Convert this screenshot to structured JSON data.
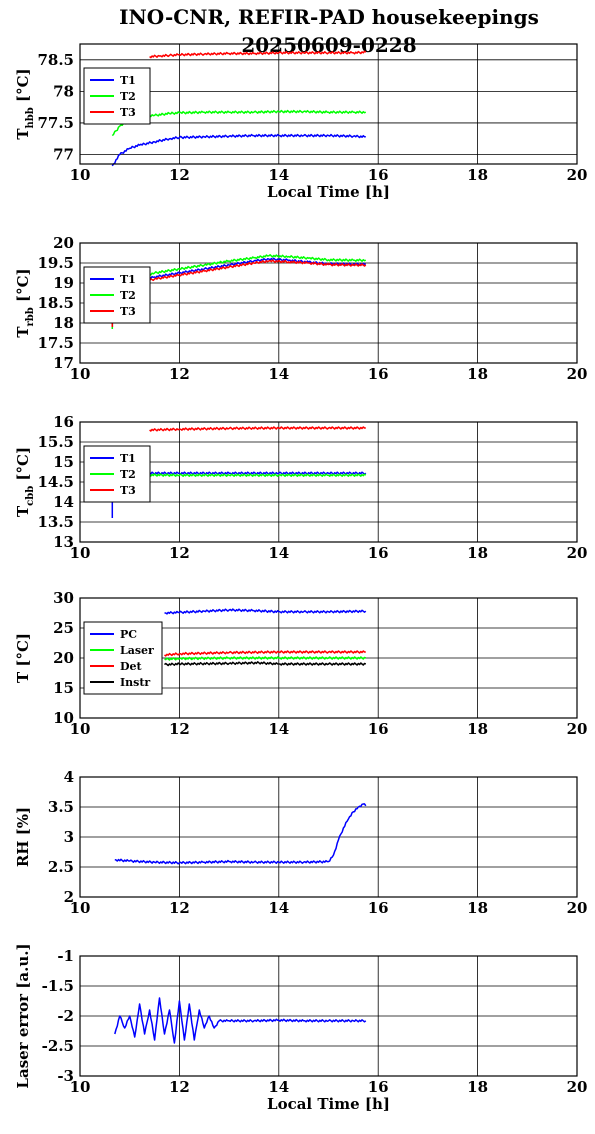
{
  "figure": {
    "title_line1": "INO-CNR, REFIR-PAD housekeepings",
    "title_line2": "20250609-0228"
  },
  "chart_data": [
    {
      "type": "line",
      "ylabel_main": "T",
      "ylabel_sub": "hbb",
      "ylabel_unit": " [°C]",
      "xlabel": "Local Time [h]",
      "xlim": [
        10,
        20
      ],
      "xticks": [
        "10",
        "12",
        "14",
        "16",
        "18",
        "20"
      ],
      "ylim": [
        76.85,
        78.75
      ],
      "yticks": [
        "77",
        "77.5",
        "78",
        "78.5"
      ],
      "ytick_values": [
        77,
        77.5,
        78,
        78.5
      ],
      "series": [
        {
          "name": "T1",
          "color": "#0000ff",
          "x": [
            10.65,
            10.8,
            11.0,
            11.2,
            11.5,
            11.8,
            12.0,
            12.5,
            13.0,
            13.5,
            14.0,
            14.5,
            15.0,
            15.5,
            15.75
          ],
          "y": [
            76.82,
            77.0,
            77.1,
            77.15,
            77.2,
            77.25,
            77.27,
            77.28,
            77.29,
            77.3,
            77.3,
            77.3,
            77.3,
            77.29,
            77.28
          ]
        },
        {
          "name": "T2",
          "color": "#00ff00",
          "x": [
            10.65,
            10.8,
            11.0,
            11.2,
            11.5,
            11.8,
            12.0,
            12.5,
            13.0,
            13.5,
            14.0,
            14.5,
            15.0,
            15.5,
            15.75
          ],
          "y": [
            77.3,
            77.45,
            77.53,
            77.58,
            77.62,
            77.65,
            77.66,
            77.67,
            77.67,
            77.67,
            77.68,
            77.68,
            77.67,
            77.67,
            77.67
          ]
        },
        {
          "name": "T3",
          "color": "#ff0000",
          "x": [
            11.4,
            11.6,
            11.8,
            12.0,
            12.5,
            13.0,
            13.5,
            14.0,
            14.5,
            15.0,
            15.5,
            15.75
          ],
          "y": [
            78.55,
            78.56,
            78.57,
            78.58,
            78.59,
            78.6,
            78.6,
            78.61,
            78.61,
            78.61,
            78.61,
            78.62
          ]
        }
      ],
      "legend": "top-left",
      "grid": true
    },
    {
      "type": "line",
      "ylabel_main": "T",
      "ylabel_sub": "rbb",
      "ylabel_unit": " [°C]",
      "xlabel": "",
      "xlim": [
        10,
        20
      ],
      "xticks": [
        "10",
        "12",
        "14",
        "16",
        "18",
        "20"
      ],
      "ylim": [
        17,
        20
      ],
      "yticks": [
        "17",
        "17.5",
        "18",
        "18.5",
        "19",
        "19.5",
        "20"
      ],
      "ytick_values": [
        17,
        17.5,
        18,
        18.5,
        19,
        19.5,
        20
      ],
      "series": [
        {
          "name": "T1",
          "color": "#0000ff",
          "x": [
            10.65,
            10.65,
            10.7,
            11.0,
            11.5,
            12.0,
            12.5,
            13.0,
            13.5,
            13.8,
            14.2,
            14.6,
            15.0,
            15.5,
            15.75
          ],
          "y": [
            17.9,
            18.6,
            18.9,
            19.0,
            19.15,
            19.25,
            19.35,
            19.45,
            19.55,
            19.6,
            19.57,
            19.52,
            19.48,
            19.47,
            19.47
          ]
        },
        {
          "name": "T2",
          "color": "#00ff00",
          "x": [
            10.65,
            10.65,
            10.7,
            11.0,
            11.5,
            12.0,
            12.5,
            13.0,
            13.5,
            13.8,
            14.2,
            14.6,
            15.0,
            15.5,
            15.75
          ],
          "y": [
            17.85,
            18.6,
            18.95,
            19.1,
            19.25,
            19.35,
            19.45,
            19.55,
            19.63,
            19.68,
            19.66,
            19.62,
            19.58,
            19.57,
            19.57
          ]
        },
        {
          "name": "T3",
          "color": "#ff0000",
          "x": [
            10.65,
            10.65,
            10.7,
            11.0,
            11.5,
            12.0,
            12.5,
            13.0,
            13.5,
            13.8,
            14.2,
            14.6,
            15.0,
            15.5,
            15.75
          ],
          "y": [
            17.9,
            18.6,
            18.85,
            18.95,
            19.1,
            19.2,
            19.3,
            19.4,
            19.5,
            19.55,
            19.53,
            19.5,
            19.46,
            19.45,
            19.45
          ]
        }
      ],
      "legend": "top-left",
      "grid": true
    },
    {
      "type": "line",
      "ylabel_main": "T",
      "ylabel_sub": "cbb",
      "ylabel_unit": " [°C]",
      "xlabel": "",
      "xlim": [
        10,
        20
      ],
      "xticks": [
        "10",
        "12",
        "14",
        "16",
        "18",
        "20"
      ],
      "ylim": [
        13,
        16
      ],
      "yticks": [
        "13",
        "13.5",
        "14",
        "14.5",
        "15",
        "15.5",
        "16"
      ],
      "ytick_values": [
        13,
        13.5,
        14,
        14.5,
        15,
        15.5,
        16
      ],
      "series": [
        {
          "name": "T1",
          "color": "#0000ff",
          "x": [
            10.65,
            10.65,
            10.7,
            11.0,
            12.0,
            13.0,
            14.0,
            15.0,
            15.75
          ],
          "y": [
            13.6,
            14.5,
            14.7,
            14.72,
            14.72,
            14.72,
            14.72,
            14.72,
            14.72
          ]
        },
        {
          "name": "T2",
          "color": "#00ff00",
          "x": [
            10.7,
            10.7,
            10.75,
            11.0,
            12.0,
            13.0,
            14.0,
            15.0,
            15.75
          ],
          "y": [
            14.3,
            14.6,
            14.68,
            14.68,
            14.67,
            14.67,
            14.67,
            14.67,
            14.67
          ]
        },
        {
          "name": "T3",
          "color": "#ff0000",
          "x": [
            11.4,
            12.0,
            13.0,
            14.0,
            15.0,
            15.75
          ],
          "y": [
            15.8,
            15.82,
            15.84,
            15.85,
            15.85,
            15.85
          ]
        }
      ],
      "legend": "top-left",
      "grid": true
    },
    {
      "type": "line",
      "ylabel_main": "T [°C]",
      "ylabel_sub": "",
      "ylabel_unit": "",
      "xlabel": "",
      "xlim": [
        10,
        20
      ],
      "xticks": [
        "10",
        "12",
        "14",
        "16",
        "18",
        "20"
      ],
      "ylim": [
        10,
        30
      ],
      "yticks": [
        "10",
        "15",
        "20",
        "25",
        "30"
      ],
      "ytick_values": [
        10,
        15,
        20,
        25,
        30
      ],
      "series": [
        {
          "name": "PC",
          "color": "#0000ff",
          "x": [
            11.7,
            12.0,
            12.5,
            13.0,
            13.5,
            14.0,
            14.5,
            15.0,
            15.75
          ],
          "y": [
            27.5,
            27.6,
            27.8,
            28.0,
            27.9,
            27.7,
            27.7,
            27.7,
            27.8
          ]
        },
        {
          "name": "Laser",
          "color": "#00ff00",
          "x": [
            11.7,
            12.0,
            13.0,
            14.0,
            15.0,
            15.75
          ],
          "y": [
            19.8,
            19.9,
            20.0,
            20.0,
            20.0,
            20.0
          ]
        },
        {
          "name": "Det",
          "color": "#ff0000",
          "x": [
            11.7,
            12.0,
            13.0,
            14.0,
            15.0,
            15.75
          ],
          "y": [
            20.5,
            20.7,
            20.9,
            21.0,
            21.0,
            21.0
          ]
        },
        {
          "name": "Instr",
          "color": "#000000",
          "x": [
            11.7,
            12.0,
            13.0,
            13.6,
            14.0,
            15.0,
            15.75
          ],
          "y": [
            18.9,
            19.0,
            19.1,
            19.2,
            19.0,
            19.0,
            19.0
          ]
        }
      ],
      "legend": "top-left",
      "grid": true
    },
    {
      "type": "line",
      "ylabel_main": "RH [%]",
      "ylabel_sub": "",
      "ylabel_unit": "",
      "xlabel": "",
      "xlim": [
        10,
        20
      ],
      "xticks": [
        "10",
        "12",
        "14",
        "16",
        "18",
        "20"
      ],
      "ylim": [
        2,
        4
      ],
      "yticks": [
        "2",
        "2.5",
        "3",
        "3.5",
        "4"
      ],
      "ytick_values": [
        2,
        2.5,
        3,
        3.5,
        4
      ],
      "series": [
        {
          "name": "",
          "color": "#0000ff",
          "x": [
            10.7,
            11.0,
            11.5,
            12.0,
            12.5,
            13.0,
            13.5,
            14.0,
            14.5,
            15.0,
            15.1,
            15.2,
            15.3,
            15.4,
            15.5,
            15.6,
            15.7,
            15.75
          ],
          "y": [
            2.62,
            2.6,
            2.58,
            2.57,
            2.58,
            2.59,
            2.58,
            2.58,
            2.58,
            2.59,
            2.7,
            2.95,
            3.15,
            3.3,
            3.42,
            3.5,
            3.55,
            3.52
          ]
        }
      ],
      "legend": "none",
      "grid": true
    },
    {
      "type": "line",
      "ylabel_main": "Laser error [a.u.]",
      "ylabel_sub": "",
      "ylabel_unit": "",
      "xlabel": "Local Time [h]",
      "xlim": [
        10,
        20
      ],
      "xticks": [
        "10",
        "12",
        "14",
        "16",
        "18",
        "20"
      ],
      "ylim": [
        -3,
        -1
      ],
      "yticks": [
        "-3",
        "-2.5",
        "-2",
        "-1.5",
        "-1"
      ],
      "ytick_values": [
        -3,
        -2.5,
        -2,
        -1.5,
        -1
      ],
      "series": [
        {
          "name": "",
          "color": "#0000ff",
          "x": [
            10.7,
            10.8,
            10.9,
            11.0,
            11.1,
            11.2,
            11.3,
            11.4,
            11.5,
            11.6,
            11.7,
            11.8,
            11.9,
            12.0,
            12.1,
            12.2,
            12.3,
            12.4,
            12.5,
            12.6,
            12.7,
            12.8,
            13.0,
            13.5,
            14.0,
            14.5,
            15.0,
            15.5,
            15.75
          ],
          "y": [
            -2.3,
            -2.0,
            -2.2,
            -2.0,
            -2.35,
            -1.8,
            -2.3,
            -1.9,
            -2.4,
            -1.7,
            -2.3,
            -1.9,
            -2.45,
            -1.75,
            -2.4,
            -1.8,
            -2.4,
            -1.9,
            -2.2,
            -2.0,
            -2.2,
            -2.08,
            -2.08,
            -2.08,
            -2.07,
            -2.08,
            -2.08,
            -2.08,
            -2.08
          ]
        }
      ],
      "legend": "none",
      "grid": true
    }
  ]
}
